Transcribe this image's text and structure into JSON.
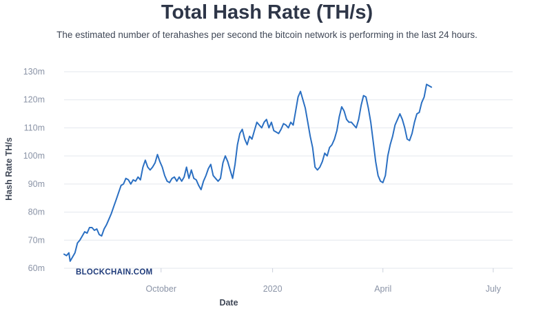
{
  "header": {
    "title": "Total Hash Rate (TH/s)",
    "subtitle": "The estimated number of terahashes per second the bitcoin network is performing in the last 24 hours."
  },
  "brand": {
    "watermark": "BLOCKCHAIN.COM"
  },
  "colors": {
    "line": "#2a6fc2",
    "grid": "#e3e7ee",
    "title": "#2e3648",
    "tick": "#8a93a6"
  },
  "chart_data": {
    "type": "line",
    "title": "Total Hash Rate (TH/s)",
    "xlabel": "Date",
    "ylabel": "Hash Rate TH/s",
    "xlim": [
      0,
      370
    ],
    "ylim": [
      60,
      130
    ],
    "y_ticks": [
      60,
      70,
      80,
      90,
      100,
      110,
      120,
      130
    ],
    "y_tick_labels": [
      "60m",
      "70m",
      "80m",
      "90m",
      "100m",
      "110m",
      "120m",
      "130m"
    ],
    "x_ticks": [
      {
        "label": "October",
        "x": 80
      },
      {
        "label": "2020",
        "x": 172
      },
      {
        "label": "April",
        "x": 263
      },
      {
        "label": "July",
        "x": 354
      }
    ],
    "grid": "horizontal",
    "series": [
      {
        "values": [
          [
            0,
            65
          ],
          [
            2,
            64.5
          ],
          [
            4,
            65.5
          ],
          [
            5,
            62.5
          ],
          [
            7,
            64
          ],
          [
            9,
            65.5
          ],
          [
            11,
            69
          ],
          [
            13,
            70
          ],
          [
            15,
            71.5
          ],
          [
            17,
            73
          ],
          [
            19,
            72.5
          ],
          [
            21,
            74.5
          ],
          [
            23,
            74.5
          ],
          [
            25,
            73.5
          ],
          [
            27,
            74
          ],
          [
            29,
            72
          ],
          [
            31,
            71.5
          ],
          [
            33,
            74
          ],
          [
            35,
            75.5
          ],
          [
            37,
            77.5
          ],
          [
            39,
            79.5
          ],
          [
            41,
            82
          ],
          [
            43,
            84.5
          ],
          [
            45,
            87
          ],
          [
            47,
            89.5
          ],
          [
            49,
            90
          ],
          [
            51,
            92
          ],
          [
            53,
            91.5
          ],
          [
            55,
            90
          ],
          [
            57,
            91.5
          ],
          [
            59,
            91
          ],
          [
            61,
            92.5
          ],
          [
            63,
            91.5
          ],
          [
            65,
            96
          ],
          [
            67,
            98.5
          ],
          [
            69,
            96
          ],
          [
            71,
            95
          ],
          [
            73,
            96
          ],
          [
            75,
            97.5
          ],
          [
            77,
            100.5
          ],
          [
            79,
            98
          ],
          [
            81,
            96
          ],
          [
            83,
            93
          ],
          [
            85,
            91
          ],
          [
            87,
            90.5
          ],
          [
            89,
            92
          ],
          [
            91,
            92.5
          ],
          [
            93,
            91
          ],
          [
            95,
            92.5
          ],
          [
            97,
            91
          ],
          [
            99,
            92.5
          ],
          [
            101,
            96
          ],
          [
            103,
            92
          ],
          [
            105,
            95
          ],
          [
            107,
            92
          ],
          [
            109,
            91.5
          ],
          [
            111,
            89.5
          ],
          [
            113,
            88
          ],
          [
            115,
            91
          ],
          [
            117,
            93
          ],
          [
            119,
            95.5
          ],
          [
            121,
            97
          ],
          [
            123,
            93
          ],
          [
            125,
            92
          ],
          [
            127,
            91
          ],
          [
            129,
            92
          ],
          [
            131,
            97.5
          ],
          [
            133,
            100
          ],
          [
            135,
            98
          ],
          [
            137,
            95
          ],
          [
            139,
            92
          ],
          [
            141,
            97
          ],
          [
            143,
            104
          ],
          [
            145,
            108
          ],
          [
            147,
            109.5
          ],
          [
            149,
            106
          ],
          [
            151,
            104
          ],
          [
            153,
            107
          ],
          [
            155,
            106
          ],
          [
            157,
            109
          ],
          [
            159,
            112
          ],
          [
            161,
            111
          ],
          [
            163,
            110
          ],
          [
            165,
            112
          ],
          [
            167,
            113
          ],
          [
            169,
            110
          ],
          [
            171,
            112
          ],
          [
            173,
            109
          ],
          [
            175,
            108.5
          ],
          [
            177,
            108
          ],
          [
            179,
            109.5
          ],
          [
            181,
            111.5
          ],
          [
            183,
            111
          ],
          [
            185,
            110
          ],
          [
            187,
            112
          ],
          [
            189,
            111
          ],
          [
            191,
            116
          ],
          [
            193,
            121
          ],
          [
            195,
            123
          ],
          [
            197,
            120
          ],
          [
            199,
            117
          ],
          [
            201,
            112
          ],
          [
            203,
            107
          ],
          [
            205,
            103
          ],
          [
            207,
            96
          ],
          [
            209,
            95
          ],
          [
            211,
            96
          ],
          [
            213,
            98
          ],
          [
            215,
            101
          ],
          [
            217,
            100
          ],
          [
            219,
            103
          ],
          [
            221,
            104
          ],
          [
            223,
            106
          ],
          [
            225,
            109
          ],
          [
            227,
            114
          ],
          [
            229,
            117.5
          ],
          [
            231,
            116
          ],
          [
            233,
            113
          ],
          [
            235,
            112
          ],
          [
            237,
            112
          ],
          [
            239,
            111
          ],
          [
            241,
            110
          ],
          [
            243,
            113
          ],
          [
            245,
            118
          ],
          [
            247,
            121.5
          ],
          [
            249,
            121
          ],
          [
            251,
            117
          ],
          [
            253,
            112
          ],
          [
            255,
            105
          ],
          [
            257,
            98
          ],
          [
            259,
            93
          ],
          [
            261,
            91
          ],
          [
            263,
            90.5
          ],
          [
            265,
            93
          ],
          [
            267,
            100
          ],
          [
            269,
            104
          ],
          [
            271,
            107
          ],
          [
            273,
            111
          ],
          [
            275,
            113
          ],
          [
            277,
            115
          ],
          [
            279,
            113
          ],
          [
            281,
            110
          ],
          [
            283,
            106
          ],
          [
            285,
            105.5
          ],
          [
            287,
            108
          ],
          [
            289,
            112
          ],
          [
            291,
            115
          ],
          [
            293,
            115.5
          ],
          [
            295,
            119
          ],
          [
            297,
            121
          ],
          [
            299,
            125.5
          ],
          [
            301,
            125
          ],
          [
            303,
            124.5
          ]
        ]
      }
    ]
  }
}
